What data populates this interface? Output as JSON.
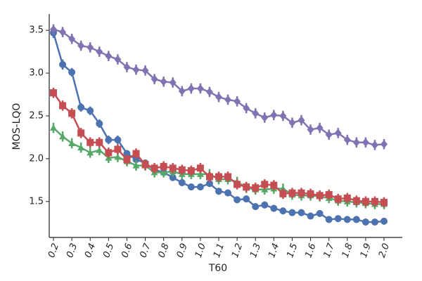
{
  "chart_data": {
    "type": "pointplot",
    "x_label": "T60",
    "y_label": "MOS-LQO",
    "categories": [
      "0.2",
      null,
      "0.3",
      null,
      "0.4",
      null,
      "0.5",
      null,
      "0.6",
      null,
      "0.7",
      null,
      "0.8",
      null,
      "0.9",
      null,
      "1.0",
      null,
      "1.1",
      null,
      "1.2",
      null,
      "1.3",
      null,
      "1.4",
      null,
      "1.5",
      null,
      "1.6",
      null,
      "1.7",
      null,
      "1.8",
      null,
      "1.9",
      null,
      "2.0"
    ],
    "ylim": [
      1.08,
      3.69
    ],
    "yticks": [
      1.5,
      {
        "value": 2,
        "label": "2.0"
      },
      2.5,
      {
        "value": 3,
        "label": "3.0"
      },
      3.5
    ],
    "series": [
      {
        "color": "#4c72b0",
        "marker": "circle",
        "values": [
          3.47,
          3.1,
          3.01,
          2.6,
          2.56,
          2.41,
          2.22,
          2.22,
          2.06,
          1.99,
          1.95,
          1.87,
          1.84,
          1.78,
          1.72,
          1.67,
          1.67,
          1.71,
          1.62,
          1.6,
          1.52,
          1.53,
          1.44,
          1.46,
          1.42,
          1.39,
          1.37,
          1.37,
          1.33,
          1.36,
          1.29,
          1.3,
          1.29,
          1.29,
          1.26,
          1.26,
          1.27
        ],
        "errors": [
          0.06,
          0.06,
          0.05,
          0.05,
          0.05,
          0.05,
          0.05,
          0.05,
          0.04,
          0.04,
          0.04,
          0.04,
          0.04,
          0.04,
          0.04,
          0.04,
          0.04,
          0.04,
          0.04,
          0.04,
          0.04,
          0.04,
          0.04,
          0.04,
          0.04,
          0.04,
          0.04,
          0.04,
          0.04,
          0.04,
          0.04,
          0.04,
          0.04,
          0.04,
          0.04,
          0.04,
          0.04
        ]
      },
      {
        "color": "#55a868",
        "marker": "triangle",
        "values": [
          2.36,
          2.26,
          2.18,
          2.13,
          2.07,
          2.1,
          2.01,
          2.02,
          1.97,
          1.92,
          1.92,
          1.84,
          1.84,
          1.85,
          1.82,
          1.82,
          1.82,
          1.82,
          1.76,
          1.76,
          1.73,
          1.66,
          1.64,
          1.64,
          1.65,
          1.65,
          1.58,
          1.57,
          1.57,
          1.56,
          1.54,
          1.51,
          1.5,
          1.49,
          1.48,
          1.47,
          1.47
        ],
        "errors": [
          0.06,
          0.06,
          0.06,
          0.06,
          0.06,
          0.06,
          0.06,
          0.06,
          0.06,
          0.06,
          0.06,
          0.06,
          0.06,
          0.06,
          0.06,
          0.06,
          0.06,
          0.06,
          0.06,
          0.06,
          0.06,
          0.06,
          0.06,
          0.06,
          0.06,
          0.06,
          0.06,
          0.06,
          0.06,
          0.06,
          0.06,
          0.06,
          0.06,
          0.06,
          0.06,
          0.06,
          0.06
        ]
      },
      {
        "color": "#c44e52",
        "marker": "square",
        "values": [
          2.77,
          2.62,
          2.53,
          2.3,
          2.19,
          2.19,
          2.07,
          2.11,
          1.99,
          2.06,
          1.93,
          1.89,
          1.91,
          1.89,
          1.87,
          1.86,
          1.89,
          1.79,
          1.79,
          1.79,
          1.7,
          1.67,
          1.66,
          1.7,
          1.69,
          1.59,
          1.6,
          1.6,
          1.59,
          1.57,
          1.58,
          1.53,
          1.54,
          1.51,
          1.5,
          1.5,
          1.49
        ],
        "errors": [
          0.06,
          0.06,
          0.06,
          0.06,
          0.06,
          0.06,
          0.06,
          0.06,
          0.06,
          0.06,
          0.06,
          0.06,
          0.06,
          0.06,
          0.06,
          0.06,
          0.06,
          0.06,
          0.06,
          0.06,
          0.06,
          0.06,
          0.06,
          0.06,
          0.06,
          0.06,
          0.06,
          0.06,
          0.06,
          0.06,
          0.06,
          0.06,
          0.06,
          0.06,
          0.06,
          0.06,
          0.06
        ]
      },
      {
        "color": "#8172b2",
        "marker": "diamond",
        "values": [
          3.51,
          3.48,
          3.4,
          3.32,
          3.3,
          3.25,
          3.2,
          3.16,
          3.07,
          3.04,
          3.03,
          2.93,
          2.9,
          2.89,
          2.79,
          2.82,
          2.82,
          2.78,
          2.72,
          2.69,
          2.67,
          2.59,
          2.53,
          2.48,
          2.51,
          2.5,
          2.42,
          2.45,
          2.34,
          2.36,
          2.28,
          2.3,
          2.22,
          2.19,
          2.19,
          2.16,
          2.17
        ],
        "errors": [
          0.06,
          0.06,
          0.06,
          0.06,
          0.06,
          0.06,
          0.06,
          0.06,
          0.06,
          0.06,
          0.06,
          0.06,
          0.06,
          0.06,
          0.06,
          0.06,
          0.06,
          0.06,
          0.06,
          0.06,
          0.06,
          0.06,
          0.06,
          0.06,
          0.06,
          0.06,
          0.06,
          0.06,
          0.06,
          0.06,
          0.06,
          0.06,
          0.06,
          0.06,
          0.06,
          0.06,
          0.06
        ]
      }
    ]
  }
}
